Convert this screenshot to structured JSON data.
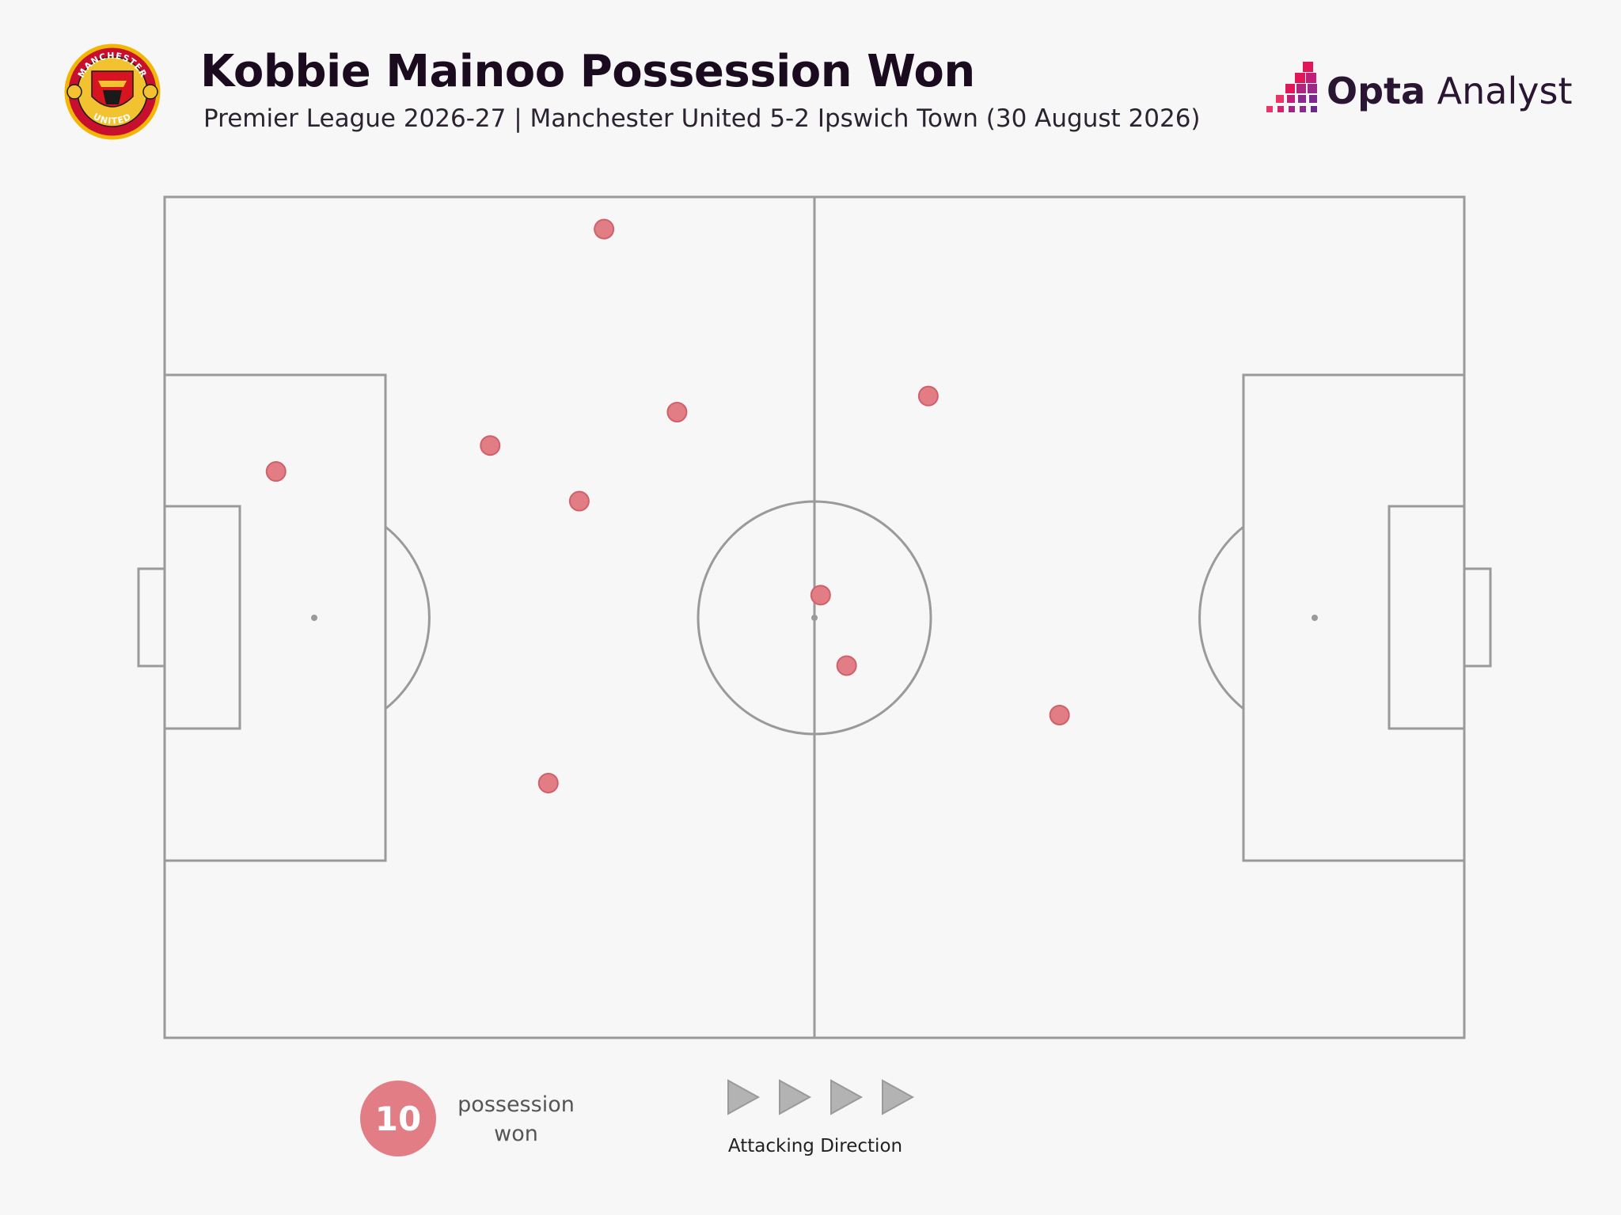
{
  "header": {
    "title": "Kobbie Mainoo Possession Won",
    "subtitle": "Premier League 2026-27 | Manchester United 5-2 Ipswich Town (30 August 2026)",
    "crest_text_top": "MANCHESTER",
    "crest_text_bottom": "UNITED",
    "brand_bold": "Opta",
    "brand_light": " Analyst"
  },
  "colors": {
    "background": "#f7f7f7",
    "pitch_lines": "#9a9a9a",
    "event_fill": "#e27d85",
    "event_stroke": "#d0606a",
    "brand_magenta": "#e0185a",
    "brand_purple": "#7a2a8a",
    "title": "#1a0b1f"
  },
  "chart_data": {
    "type": "scatter",
    "pitch_length": 105,
    "pitch_width": 68,
    "attacking_direction": "left-to-right",
    "series": [
      {
        "name": "possession won",
        "points": [
          {
            "x": 35.5,
            "y": 65.4
          },
          {
            "x": 41.4,
            "y": 50.6
          },
          {
            "x": 9.0,
            "y": 45.8
          },
          {
            "x": 26.3,
            "y": 47.9
          },
          {
            "x": 33.5,
            "y": 43.4
          },
          {
            "x": 61.7,
            "y": 51.9
          },
          {
            "x": 53.0,
            "y": 35.8
          },
          {
            "x": 55.1,
            "y": 30.1
          },
          {
            "x": 72.3,
            "y": 26.1
          },
          {
            "x": 31.0,
            "y": 20.6
          }
        ]
      }
    ]
  },
  "legend": {
    "count": "10",
    "label_line1": "possession",
    "label_line2": "won",
    "arrows_caption": "Attacking Direction",
    "arrow_icon": "play-triangle-icon"
  }
}
